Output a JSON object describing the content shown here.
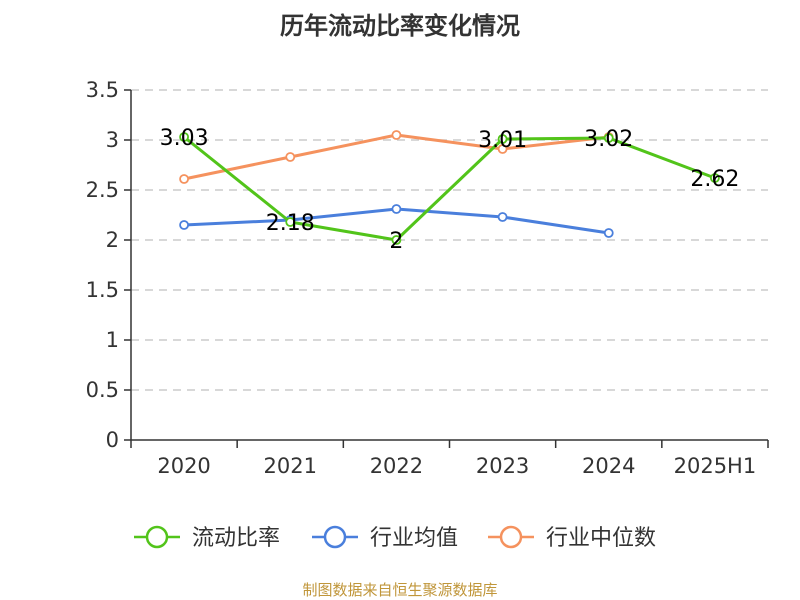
{
  "title": "历年流动比率变化情况",
  "footer": "制图数据来自恒生聚源数据库",
  "chart_data": {
    "type": "line",
    "title": "历年流动比率变化情况",
    "categories": [
      "2020",
      "2021",
      "2022",
      "2023",
      "2024",
      "2025H1"
    ],
    "ylim": [
      0,
      3.5
    ],
    "yticks": [
      "0",
      "0.5",
      "1",
      "1.5",
      "2",
      "2.5",
      "3",
      "3.5"
    ],
    "grid": true,
    "legend_position": "bottom",
    "series": [
      {
        "name": "流动比率",
        "color": "#52c41a",
        "values": [
          3.03,
          2.18,
          2.0,
          3.01,
          3.02,
          2.62
        ],
        "labels": [
          "3.03",
          "2.18",
          "2",
          "3.01",
          "3.02",
          "2.62"
        ]
      },
      {
        "name": "行业均值",
        "color": "#4a7fdc",
        "values": [
          2.15,
          2.2,
          2.31,
          2.23,
          2.07,
          null
        ]
      },
      {
        "name": "行业中位数",
        "color": "#f5925e",
        "values": [
          2.61,
          2.83,
          3.05,
          2.91,
          3.03,
          null
        ]
      }
    ]
  }
}
